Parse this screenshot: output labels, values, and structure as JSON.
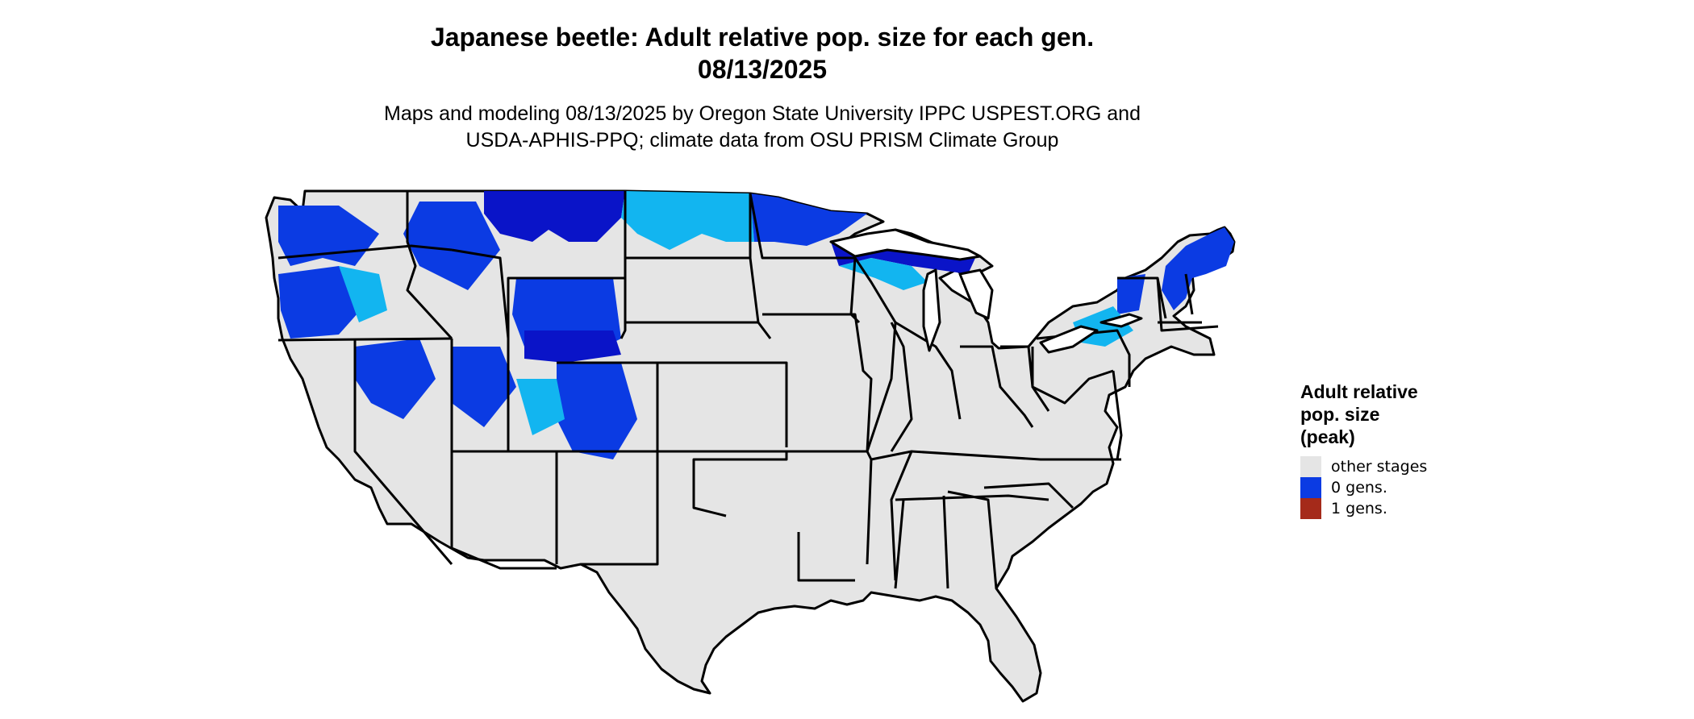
{
  "header": {
    "title_line1": "Japanese beetle: Adult relative pop. size for each gen.",
    "title_line2": "08/13/2025",
    "subtitle_line1": "Maps and modeling 08/13/2025 by Oregon State University IPPC USPEST.ORG and",
    "subtitle_line2": "USDA-APHIS-PPQ; climate data from OSU PRISM Climate Group"
  },
  "legend": {
    "title_line1": "Adult relative",
    "title_line2": "pop. size",
    "title_line3": "(peak)",
    "items": [
      {
        "label": "other stages",
        "color": "#e5e5e5"
      },
      {
        "label": "0 gens.",
        "color": "#0b3be3"
      },
      {
        "label": "1 gens.",
        "color": "#a52a1a"
      }
    ]
  },
  "colors": {
    "land": "#e5e5e5",
    "dark_blue": "#0a14c8",
    "mid_blue": "#0b3be3",
    "light_blue": "#12b5f0",
    "border": "#000000"
  }
}
